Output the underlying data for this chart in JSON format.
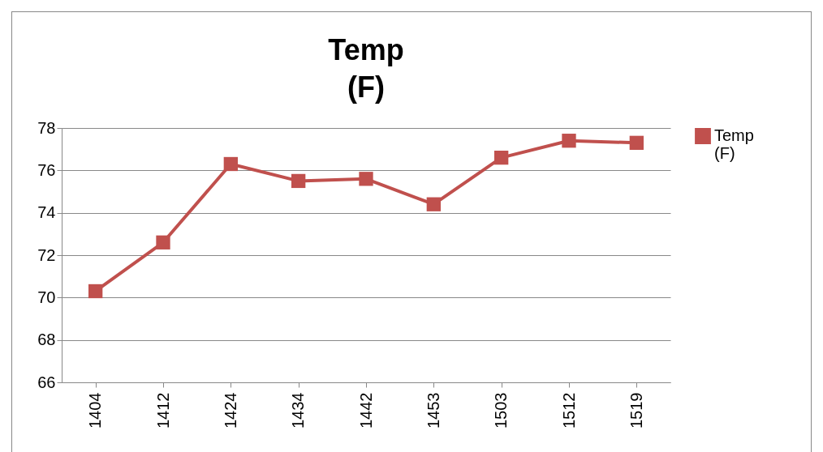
{
  "chart_data": {
    "type": "line",
    "title": "Temp (F)",
    "categories": [
      "1404",
      "1412",
      "1424",
      "1434",
      "1442",
      "1453",
      "1503",
      "1512",
      "1519"
    ],
    "series": [
      {
        "name": "Temp (F)",
        "color": "#c0504d",
        "values": [
          70.3,
          72.6,
          76.3,
          75.5,
          75.6,
          74.4,
          76.6,
          77.4,
          77.3
        ]
      }
    ],
    "ylim": [
      66,
      78
    ],
    "yticks": [
      66,
      68,
      70,
      72,
      74,
      76,
      78
    ],
    "grid": "y",
    "legend": "right",
    "marker": "square"
  }
}
